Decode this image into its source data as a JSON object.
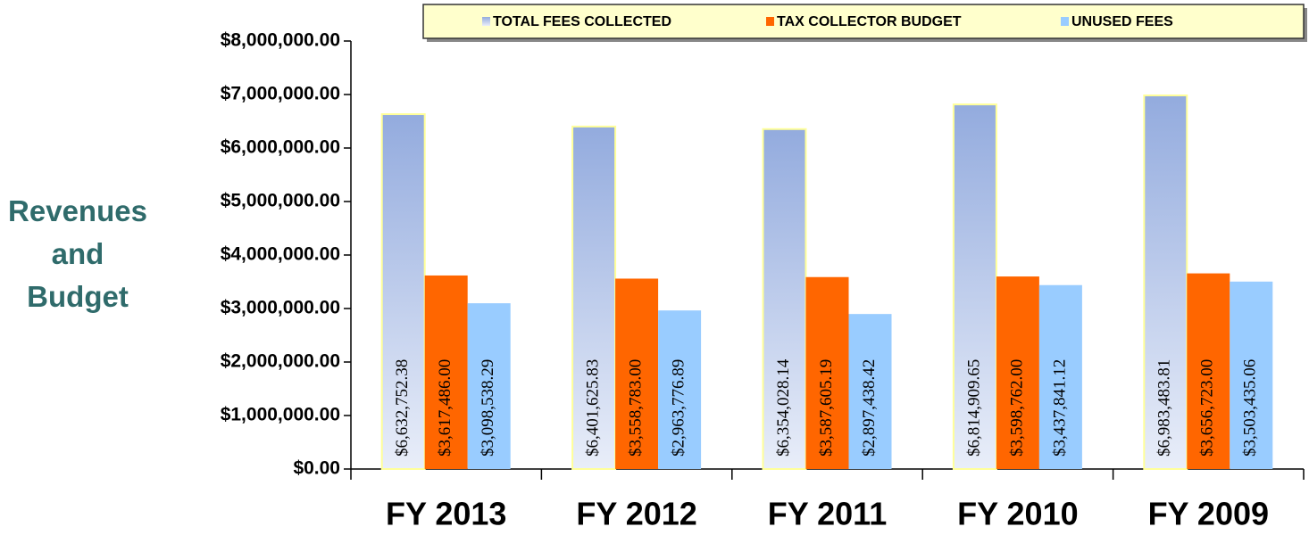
{
  "chart_data": {
    "type": "bar",
    "y_axis_label": "Revenues and Budget",
    "categories": [
      "FY 2013",
      "FY 2012",
      "FY 2011",
      "FY 2010",
      "FY 2009"
    ],
    "series": [
      {
        "name": "TOTAL FEES COLLECTED",
        "color": "#93abde",
        "values": [
          6632752.38,
          6401625.83,
          6354028.14,
          6814909.65,
          6983483.81
        ],
        "value_labels": [
          "$6,632,752.38",
          "$6,401,625.83",
          "$6,354,028.14",
          "$6,814,909.65",
          "$6,983,483.81"
        ]
      },
      {
        "name": "TAX COLLECTOR BUDGET",
        "color": "#ff6600",
        "values": [
          3617486.0,
          3558783.0,
          3587605.19,
          3598762.0,
          3656723.0
        ],
        "value_labels": [
          "$3,617,486.00",
          "$3,558,783.00",
          "$3,587,605.19",
          "$3,598,762.00",
          "$3,656,723.00"
        ]
      },
      {
        "name": "UNUSED FEES",
        "color": "#99ccff",
        "values": [
          3098538.29,
          2963776.89,
          2897438.42,
          3437841.12,
          3503435.06
        ],
        "value_labels": [
          "$3,098,538.29",
          "$2,963,776.89",
          "$2,897,438.42",
          "$3,437,841.12",
          "$3,503,435.06"
        ]
      }
    ],
    "ylim": [
      0,
      8000000
    ],
    "yticks": [
      {
        "value": 0,
        "label": "$0.00"
      },
      {
        "value": 1000000,
        "label": "$1,000,000.00"
      },
      {
        "value": 2000000,
        "label": "$2,000,000.00"
      },
      {
        "value": 3000000,
        "label": "$3,000,000.00"
      },
      {
        "value": 4000000,
        "label": "$4,000,000.00"
      },
      {
        "value": 5000000,
        "label": "$5,000,000.00"
      },
      {
        "value": 6000000,
        "label": "$6,000,000.00"
      },
      {
        "value": 7000000,
        "label": "$7,000,000.00"
      },
      {
        "value": 8000000,
        "label": "$8,000,000.00"
      }
    ],
    "grid": false,
    "legend": "top"
  }
}
